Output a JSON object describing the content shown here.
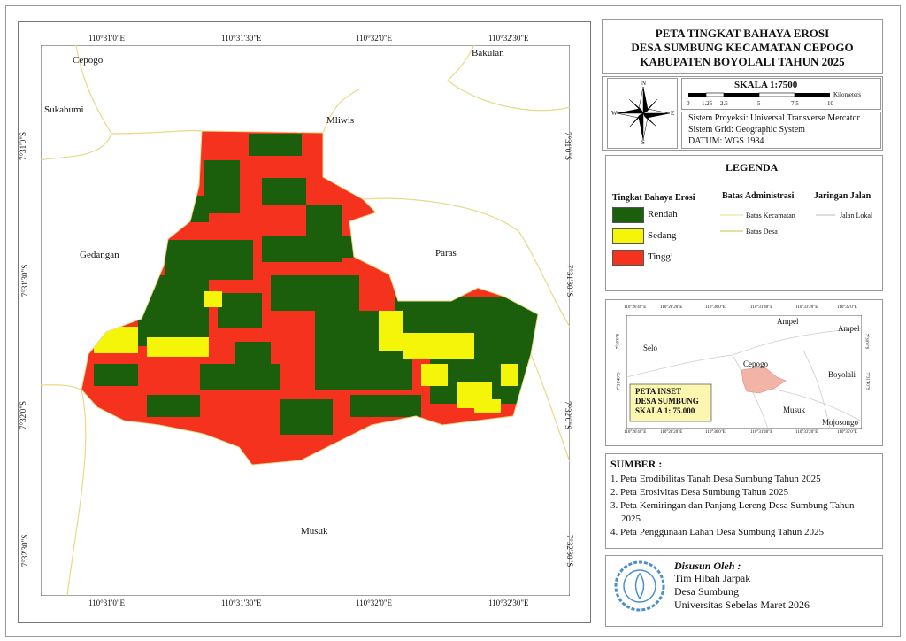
{
  "title": [
    "PETA TINGKAT BAHAYA  EROSI",
    "DESA SUMBUNG KECAMATAN CEPOGO",
    "KABUPATEN BOYOLALI TAHUN 2025"
  ],
  "map": {
    "longitudes": [
      "110°31'0\"E",
      "110°31'30\"E",
      "110°32'0\"E",
      "110°32'30\"E"
    ],
    "latitudes": [
      "7°31'0\"S",
      "7°31'30\"S",
      "7°32'0\"S",
      "7°32'30\"S"
    ],
    "places": [
      "Cepogo",
      "Bakulan",
      "Sukabumi",
      "Mliwis",
      "Gedangan",
      "Paras",
      "Musuk"
    ]
  },
  "compass": [
    "N",
    "S",
    "E",
    "W"
  ],
  "scale": {
    "title": "SKALA 1:7500",
    "unit": "Kilometers",
    "ticks": [
      "0",
      "1.25",
      "2.5",
      "5",
      "7.5",
      "10"
    ]
  },
  "projection": [
    "Sistem Proyeksi: Universal Transverse Mercator",
    "Sistem Grid: Geographic System",
    "DATUM: WGS 1984"
  ],
  "legend": {
    "title": "LEGENDA",
    "erosion": {
      "title": "Tingkat Bahaya Erosi",
      "items": [
        {
          "label": "Rendah",
          "color": "#1b5e0c"
        },
        {
          "label": "Sedang",
          "color": "#f5f50a"
        },
        {
          "label": "Tinggi",
          "color": "#f5321e"
        }
      ]
    },
    "admin": {
      "title": "Batas Administrasi",
      "items": [
        "Batas Kecamatan",
        "Batas Desa"
      ]
    },
    "roads": {
      "title": "Jaringan Jalan",
      "items": [
        "Jalan Lokal"
      ]
    }
  },
  "inset": {
    "title": [
      "PETA INSET",
      "DESA SUMBUNG",
      "SKALA 1: 75.000"
    ],
    "longitudes": [
      "110°26'40\"E",
      "110°28'20\"E",
      "110°30'0\"E",
      "110°31'40\"E",
      "110°33'20\"E",
      "110°35'0\"E"
    ],
    "latitudes": [
      "7°30'0\"S",
      "7°31'40\"S"
    ],
    "places": [
      "Selo",
      "Ampel",
      "Ampel",
      "Cepogo",
      "Boyolali",
      "Musuk",
      "Mojosongo"
    ]
  },
  "sources": {
    "title": "SUMBER :",
    "items": [
      "1. Peta Erodibilitas Tanah Desa Sumbung Tahun 2025",
      "2. Peta Erosivitas Desa Sumbung Tahun 2025",
      "3. Peta Kemiringan dan Panjang Lereng Desa Sumbung Tahun 2025",
      "4. Peta Penggunaan Lahan Desa Sumbung Tahun 2025"
    ]
  },
  "credits": {
    "title": "Disusun Oleh :",
    "lines": [
      "Tim Hibah Jarpak",
      "Desa Sumbung",
      "Universitas Sebelas Maret 2026"
    ]
  }
}
